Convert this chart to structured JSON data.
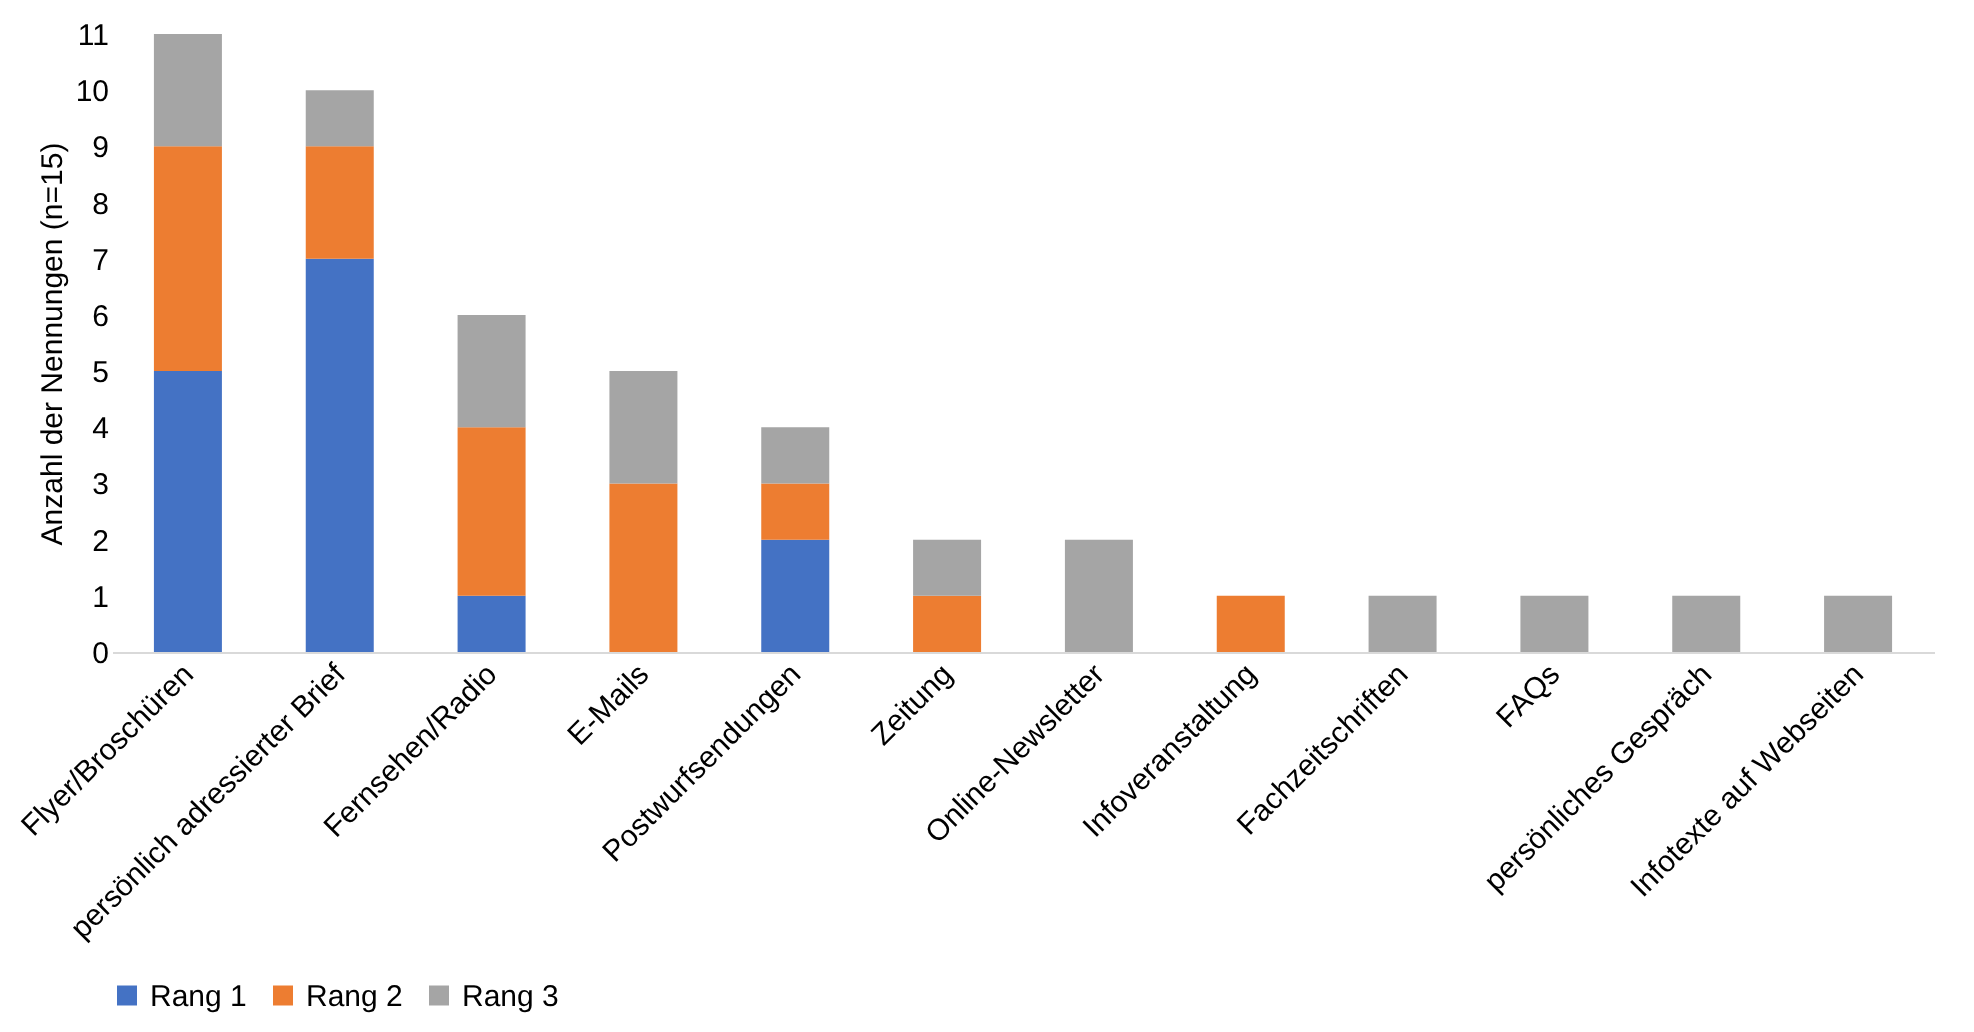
{
  "chart_data": {
    "type": "bar",
    "stacked": true,
    "ylabel": "Anzahl der Nennungen (n=15)",
    "categories": [
      "Flyer/Broschüren",
      "persönlich adressierter Brief",
      "Fernsehen/Radio",
      "E-Mails",
      "Postwurfsendungen",
      "Zeitung",
      "Online-Newsletter",
      "Infoveranstaltung",
      "Fachzeitschriften",
      "FAQs",
      "persönliches Gespräch",
      "Infotexte auf Webseiten"
    ],
    "series": [
      {
        "name": "Rang 1",
        "color": "#4472c4",
        "values": [
          5,
          7,
          1,
          0,
          2,
          0,
          0,
          0,
          0,
          0,
          0,
          0
        ]
      },
      {
        "name": "Rang 2",
        "color": "#ed7d31",
        "values": [
          4,
          2,
          3,
          3,
          1,
          1,
          0,
          1,
          0,
          0,
          0,
          0
        ]
      },
      {
        "name": "Rang 3",
        "color": "#a5a5a5",
        "values": [
          2,
          1,
          2,
          2,
          1,
          1,
          2,
          0,
          1,
          1,
          1,
          1
        ]
      }
    ],
    "ylim": [
      0,
      11
    ],
    "yticks": [
      0,
      1,
      2,
      3,
      4,
      5,
      6,
      7,
      8,
      9,
      10,
      11
    ],
    "grid": false,
    "legend": "bottom"
  }
}
